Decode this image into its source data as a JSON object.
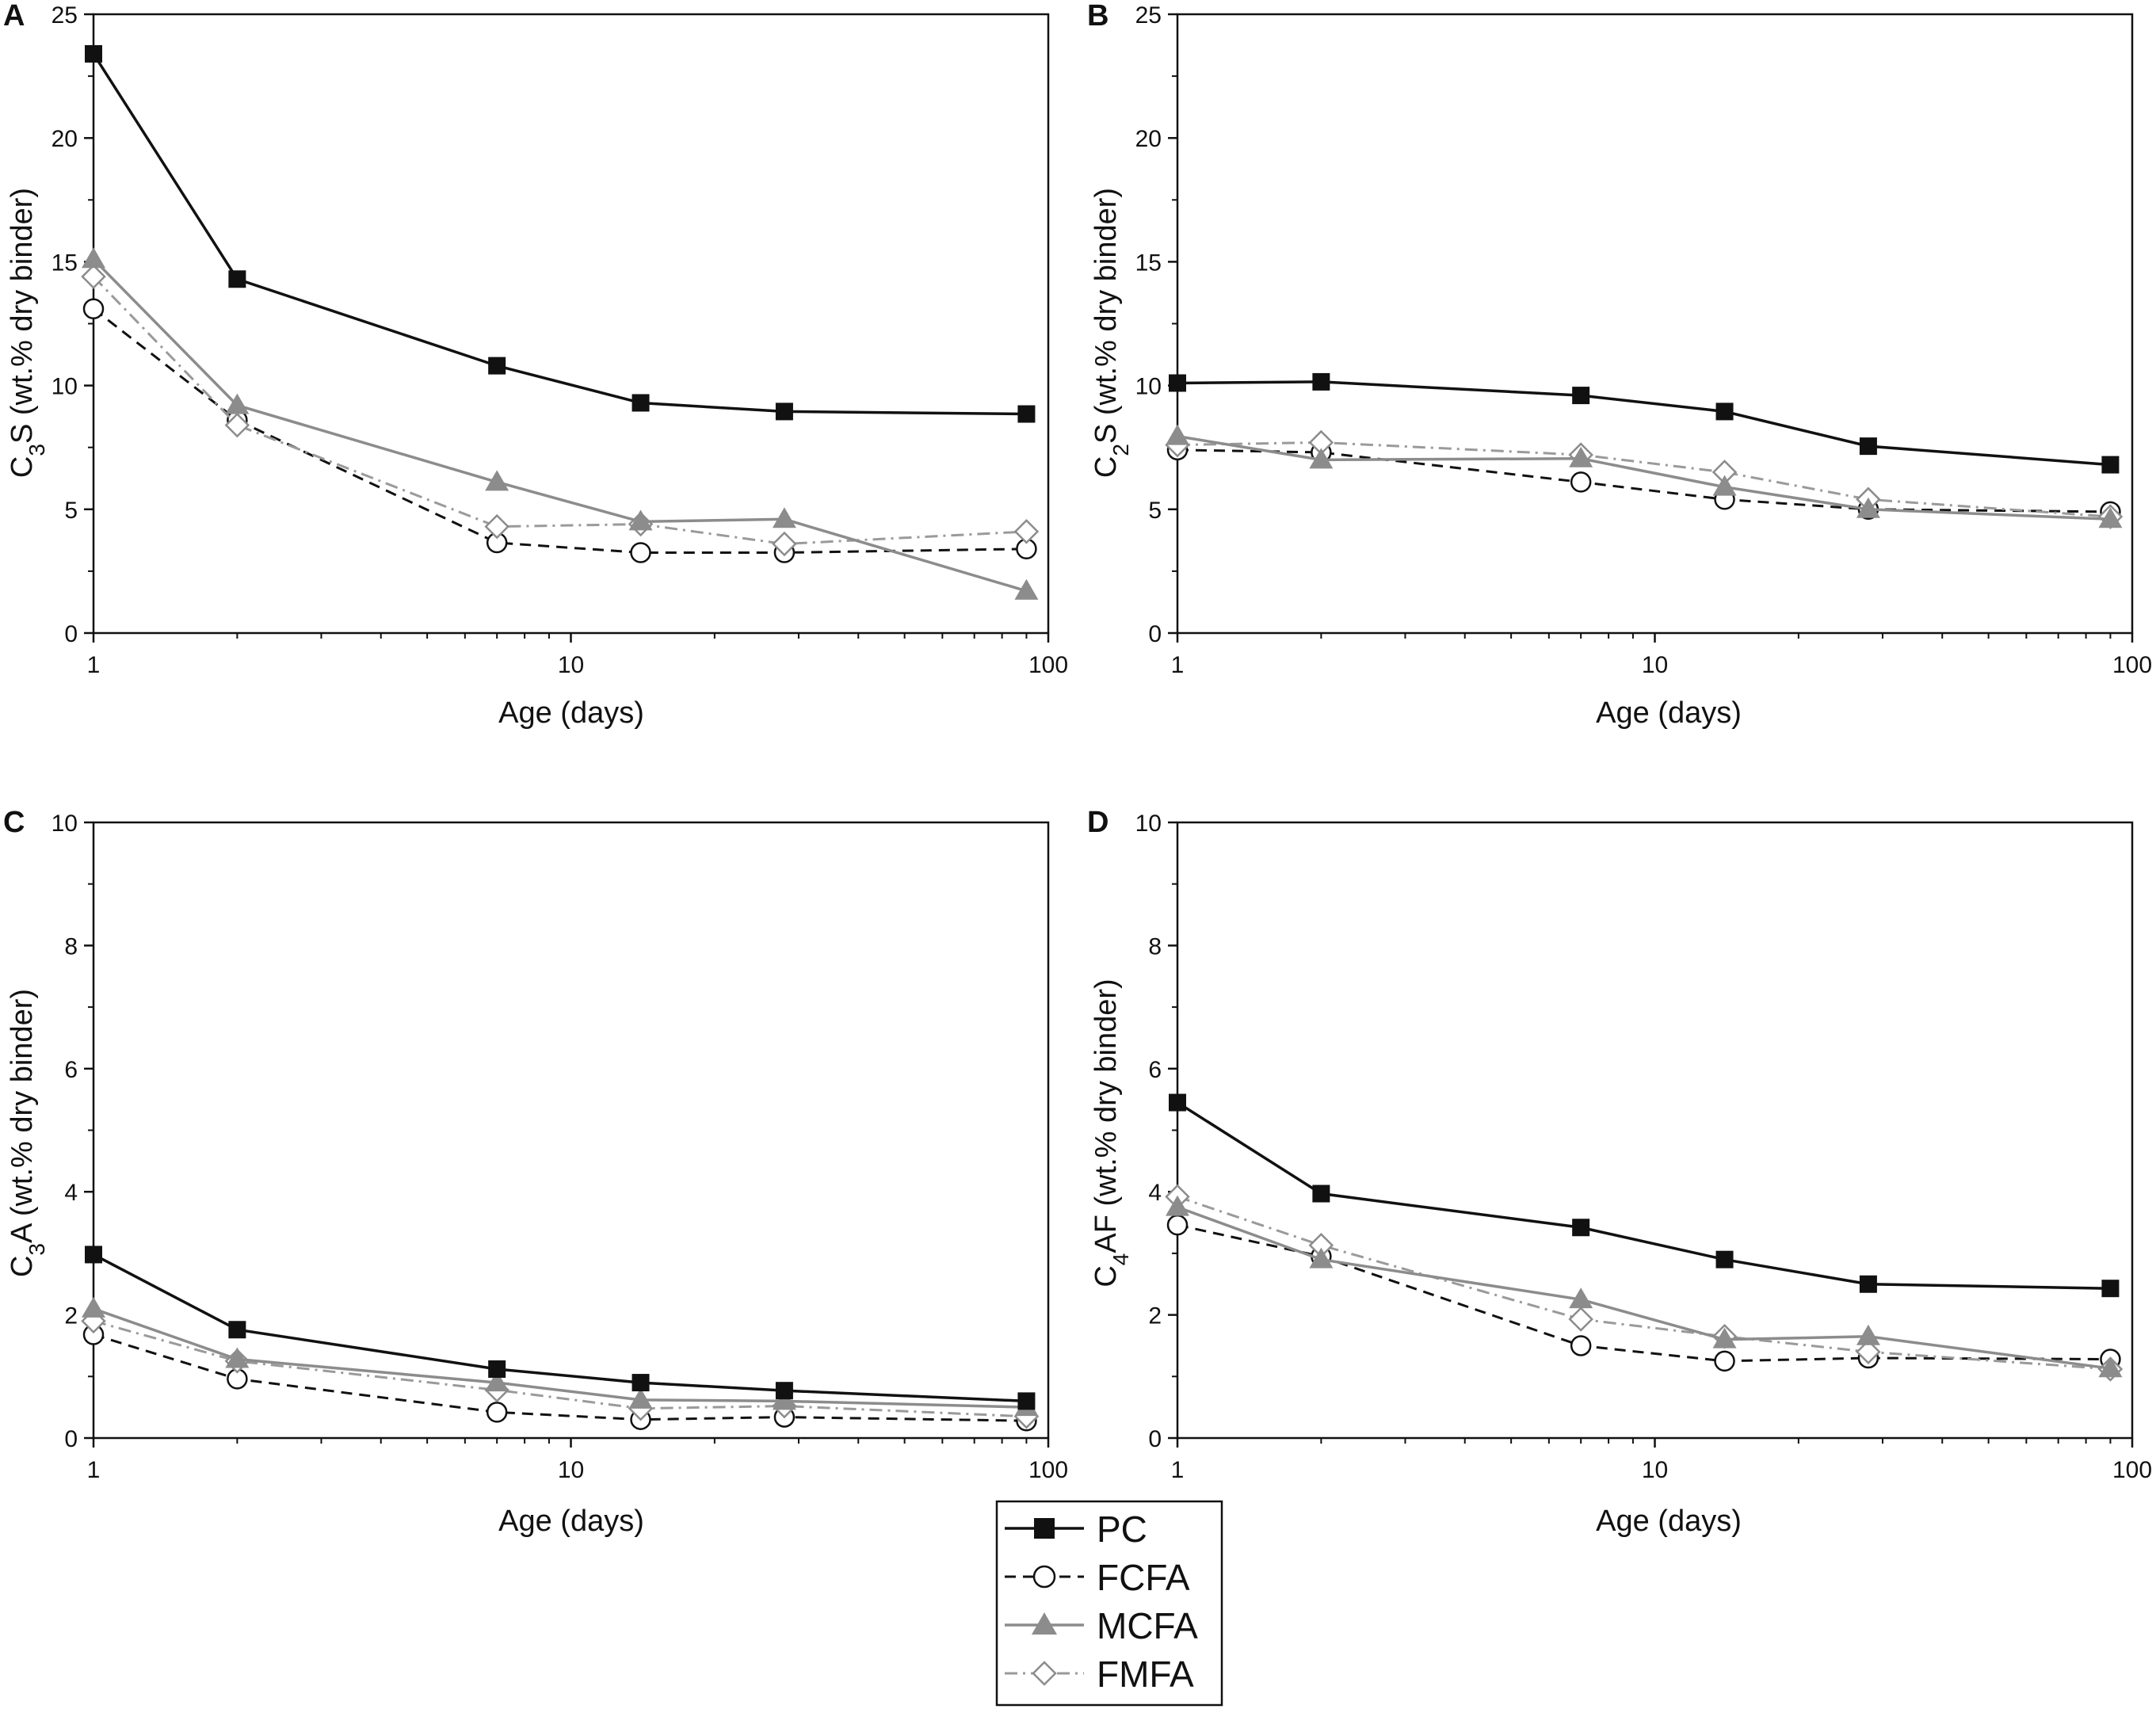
{
  "chart_data": [
    {
      "type": "line",
      "panel": "A",
      "xscale": "log",
      "xlabel": "Age (days)",
      "ylabel_prefix": "C",
      "ylabel_sub": "3",
      "ylabel_suffix": "S (wt.% dry binder)",
      "xlim": [
        1,
        100
      ],
      "ylim": [
        0,
        25
      ],
      "xticks": [
        1,
        10,
        100
      ],
      "yticks": [
        0,
        5,
        10,
        15,
        20,
        25
      ],
      "x": [
        1,
        2,
        7,
        14,
        28,
        90
      ],
      "series": [
        {
          "name": "PC",
          "values": [
            23.4,
            14.3,
            10.8,
            9.3,
            8.95,
            8.85
          ]
        },
        {
          "name": "FCFA",
          "values": [
            13.1,
            8.6,
            3.65,
            3.25,
            3.25,
            3.4
          ]
        },
        {
          "name": "MCFA",
          "values": [
            15.1,
            9.2,
            6.1,
            4.5,
            4.6,
            1.7
          ]
        },
        {
          "name": "FMFA",
          "values": [
            14.4,
            8.4,
            4.3,
            4.4,
            3.6,
            4.1
          ]
        }
      ]
    },
    {
      "type": "line",
      "panel": "B",
      "xscale": "log",
      "xlabel": "Age (days)",
      "ylabel_prefix": "C",
      "ylabel_sub": "2",
      "ylabel_suffix": "S (wt.% dry binder)",
      "xlim": [
        1,
        100
      ],
      "ylim": [
        0,
        25
      ],
      "xticks": [
        1,
        10,
        100
      ],
      "yticks": [
        0,
        5,
        10,
        15,
        20,
        25
      ],
      "x": [
        1,
        2,
        7,
        14,
        28,
        90
      ],
      "series": [
        {
          "name": "PC",
          "values": [
            10.1,
            10.15,
            9.6,
            8.95,
            7.55,
            6.8
          ]
        },
        {
          "name": "FCFA",
          "values": [
            7.4,
            7.3,
            6.1,
            5.4,
            5.0,
            4.9
          ]
        },
        {
          "name": "MCFA",
          "values": [
            7.95,
            7.0,
            7.05,
            5.9,
            5.0,
            4.6
          ]
        },
        {
          "name": "FMFA",
          "values": [
            7.6,
            7.7,
            7.2,
            6.5,
            5.4,
            4.7
          ]
        }
      ]
    },
    {
      "type": "line",
      "panel": "C",
      "xscale": "log",
      "xlabel": "Age (days)",
      "ylabel_prefix": "C",
      "ylabel_sub": "3",
      "ylabel_suffix": "A (wt.% dry binder)",
      "xlim": [
        1,
        100
      ],
      "ylim": [
        0,
        10
      ],
      "xticks": [
        1,
        10,
        100
      ],
      "yticks": [
        0,
        2,
        4,
        6,
        8,
        10
      ],
      "x": [
        1,
        2,
        7,
        14,
        28,
        90
      ],
      "series": [
        {
          "name": "PC",
          "values": [
            2.98,
            1.76,
            1.12,
            0.9,
            0.77,
            0.6
          ]
        },
        {
          "name": "FCFA",
          "values": [
            1.68,
            0.96,
            0.42,
            0.3,
            0.34,
            0.28
          ]
        },
        {
          "name": "MCFA",
          "values": [
            2.1,
            1.28,
            0.9,
            0.62,
            0.6,
            0.5
          ]
        },
        {
          "name": "FMFA",
          "values": [
            1.9,
            1.25,
            0.78,
            0.48,
            0.52,
            0.35
          ]
        }
      ]
    },
    {
      "type": "line",
      "panel": "D",
      "xscale": "log",
      "xlabel": "Age (days)",
      "ylabel_prefix": "C",
      "ylabel_sub": "4",
      "ylabel_suffix": "AF (wt.% dry binder)",
      "xlim": [
        1,
        100
      ],
      "ylim": [
        0,
        10
      ],
      "xticks": [
        1,
        10,
        100
      ],
      "yticks": [
        0,
        2,
        4,
        6,
        8,
        10
      ],
      "x": [
        1,
        2,
        7,
        14,
        28,
        90
      ],
      "series": [
        {
          "name": "PC",
          "values": [
            5.45,
            3.97,
            3.42,
            2.9,
            2.5,
            2.43
          ]
        },
        {
          "name": "FCFA",
          "values": [
            3.46,
            2.95,
            1.5,
            1.25,
            1.3,
            1.28
          ]
        },
        {
          "name": "MCFA",
          "values": [
            3.75,
            2.9,
            2.25,
            1.6,
            1.65,
            1.13
          ]
        },
        {
          "name": "FMFA",
          "values": [
            3.92,
            3.13,
            1.93,
            1.65,
            1.4,
            1.12
          ]
        }
      ]
    }
  ],
  "legend": {
    "position": "bottom-center",
    "entries": [
      {
        "name": "PC",
        "color": "#111111",
        "marker": "filled-square",
        "line": "solid"
      },
      {
        "name": "FCFA",
        "color": "#111111",
        "marker": "open-circle",
        "line": "dashed"
      },
      {
        "name": "MCFA",
        "color": "#8c8c8c",
        "marker": "filled-triangle",
        "line": "solid"
      },
      {
        "name": "FMFA",
        "color": "#9a9a9a",
        "marker": "open-diamond",
        "line": "dash-dot"
      }
    ]
  }
}
